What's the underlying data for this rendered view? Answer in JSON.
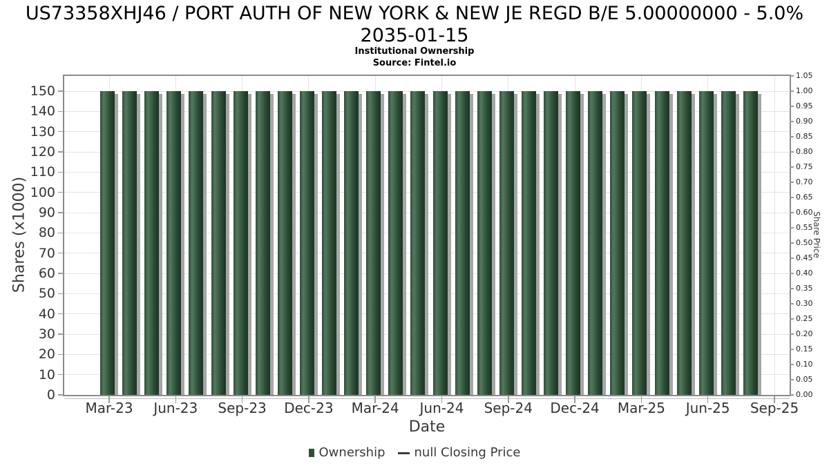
{
  "title": {
    "line1": "US73358XHJ46 / PORT AUTH OF NEW YORK & NEW JE REGD B/E 5.00000000 - 5.0%",
    "line2": "2035-01-15"
  },
  "subtitle": "Institutional Ownership",
  "source": "Source: Fintel.io",
  "chart_data": {
    "type": "bar",
    "title": "US73358XHJ46 / PORT AUTH OF NEW YORK & NEW JE REGD B/E 5.00000000 - 5.0% 2035-01-15",
    "subtitle": "Institutional Ownership",
    "source": "Source: Fintel.io",
    "xlabel": "Date",
    "ylabel_left": "Shares (x1000)",
    "ylabel_right": "Share Price",
    "grid": true,
    "legend_position": "bottom",
    "x_tick_labels": [
      "Mar-23",
      "Jun-23",
      "Sep-23",
      "Dec-23",
      "Mar-24",
      "Jun-24",
      "Sep-24",
      "Dec-24",
      "Mar-25",
      "Jun-25",
      "Sep-25"
    ],
    "left_axis_ticks": [
      "0",
      "10",
      "20",
      "30",
      "40",
      "50",
      "60",
      "70",
      "80",
      "90",
      "100",
      "110",
      "120",
      "130",
      "140",
      "150"
    ],
    "right_axis_ticks": [
      "0.00",
      "0.05",
      "0.10",
      "0.15",
      "0.20",
      "0.25",
      "0.30",
      "0.35",
      "0.40",
      "0.45",
      "0.50",
      "0.55",
      "0.60",
      "0.65",
      "0.70",
      "0.75",
      "0.80",
      "0.85",
      "0.90",
      "0.95",
      "1.00",
      "1.05"
    ],
    "ylim_left": [
      0,
      157.5
    ],
    "ylim_right": [
      0,
      1.05
    ],
    "categories": [
      "Mar-23",
      "Apr-23",
      "May-23",
      "Jun-23",
      "Jul-23",
      "Aug-23",
      "Sep-23",
      "Oct-23",
      "Nov-23",
      "Dec-23",
      "Jan-24",
      "Feb-24",
      "Mar-24",
      "Apr-24",
      "May-24",
      "Jun-24",
      "Jul-24",
      "Aug-24",
      "Sep-24",
      "Oct-24",
      "Nov-24",
      "Dec-24",
      "Jan-25",
      "Feb-25",
      "Mar-25",
      "Apr-25",
      "May-25",
      "Jun-25",
      "Jul-25",
      "Aug-25"
    ],
    "series": [
      {
        "name": "Ownership",
        "type": "bar",
        "axis": "left",
        "color": "#2d4f39",
        "values": [
          150,
          150,
          150,
          150,
          150,
          150,
          150,
          150,
          150,
          150,
          150,
          150,
          150,
          150,
          150,
          150,
          150,
          150,
          150,
          150,
          150,
          150,
          150,
          150,
          150,
          150,
          150,
          150,
          150,
          150
        ]
      },
      {
        "name": "null Closing Price",
        "type": "line",
        "axis": "right",
        "color": "#3a3a3a",
        "values": []
      }
    ]
  },
  "legend": {
    "items": [
      {
        "label": "Ownership",
        "marker": "square"
      },
      {
        "label": "null Closing Price",
        "marker": "line"
      }
    ]
  },
  "colors": {
    "bar_base": "#2d4f39",
    "bar_light": "#55795e",
    "bar_mid": "#3b6046",
    "bar_dark": "#1c3525",
    "bar_edge": "#2c4e38",
    "shadow": "#a6a6a6",
    "grid": "#e4e4e4",
    "border": "#8a8a8a",
    "axis_line": "#bdbdbd",
    "tick": "#9a9a9a",
    "tick_text": "#333333",
    "legend_text": "#3a3a3a"
  }
}
